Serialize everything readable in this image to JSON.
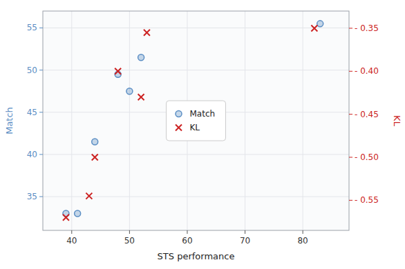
{
  "chart_data": {
    "type": "scatter",
    "xlabel": "STS performance",
    "ylabel": "Match",
    "y2label": "KL",
    "xlim": [
      35,
      88
    ],
    "xticks": [
      40,
      50,
      60,
      70,
      80
    ],
    "ylim": [
      31,
      57
    ],
    "yticks": [
      35,
      40,
      45,
      50,
      55
    ],
    "y2lim": [
      -0.585,
      -0.33
    ],
    "y2ticks": [
      {
        "value": -0.55,
        "label": "- 0.55"
      },
      {
        "value": -0.5,
        "label": "- 0.50"
      },
      {
        "value": -0.45,
        "label": "- 0.45"
      },
      {
        "value": -0.4,
        "label": "- 0.40"
      },
      {
        "value": -0.35,
        "label": "- 0.35"
      }
    ],
    "grid": true,
    "legend": "center",
    "series": [
      {
        "name": "Match",
        "color": "#5b8ec4",
        "marker": "circle",
        "x": [
          39,
          41,
          44,
          48,
          50,
          52,
          83
        ],
        "values": [
          33,
          33,
          41.5,
          49.5,
          47.5,
          51.5,
          55.5
        ]
      },
      {
        "name": "KL",
        "color": "#cc2222",
        "marker": "x",
        "axis": "y2",
        "x": [
          39,
          43,
          44,
          48,
          52,
          53,
          82
        ],
        "values": [
          -0.57,
          -0.545,
          -0.5,
          -0.4,
          -0.43,
          -0.355,
          -0.35
        ]
      }
    ]
  }
}
